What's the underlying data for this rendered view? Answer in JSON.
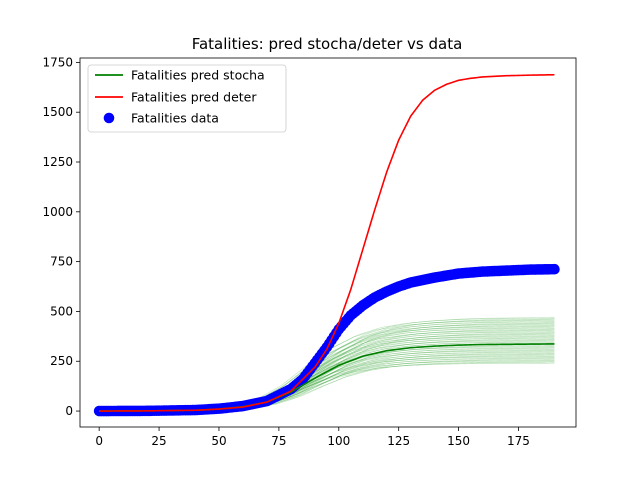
{
  "chart_data": {
    "type": "line",
    "title": "Fatalities: pred stocha/deter vs data",
    "xlabel": "",
    "ylabel": "",
    "xlim": [
      -8,
      199
    ],
    "ylim": [
      -80,
      1772
    ],
    "xticks": [
      0,
      25,
      50,
      75,
      100,
      125,
      150,
      175
    ],
    "yticks": [
      0,
      250,
      500,
      750,
      1000,
      1250,
      1500,
      1750
    ],
    "legend_position": "top-left",
    "grid": false,
    "colors": {
      "stocha": "#008000",
      "stocha_ensemble": "#2ca02c",
      "deter": "#ff0000",
      "data": "#0000ff"
    },
    "series": [
      {
        "name": "Fatalities pred stocha",
        "style": "line",
        "color": "#008000",
        "x": [
          0,
          20,
          40,
          50,
          60,
          70,
          80,
          90,
          100,
          110,
          120,
          130,
          140,
          150,
          160,
          170,
          180,
          190
        ],
        "y": [
          0,
          1,
          4,
          10,
          22,
          45,
          95,
          165,
          230,
          275,
          303,
          318,
          326,
          331,
          334,
          335,
          336,
          337
        ]
      },
      {
        "name": "Fatalities pred deter",
        "style": "line",
        "color": "#ff0000",
        "x": [
          0,
          20,
          40,
          50,
          60,
          70,
          80,
          90,
          95,
          100,
          105,
          110,
          115,
          120,
          125,
          130,
          135,
          140,
          145,
          150,
          155,
          160,
          170,
          180,
          190
        ],
        "y": [
          0,
          1,
          4,
          10,
          20,
          45,
          100,
          220,
          310,
          440,
          610,
          810,
          1010,
          1200,
          1360,
          1480,
          1560,
          1610,
          1640,
          1660,
          1670,
          1677,
          1683,
          1686,
          1688
        ]
      },
      {
        "name": "Fatalities data",
        "style": "scatter",
        "color": "#0000ff",
        "x": [
          0,
          20,
          40,
          50,
          60,
          70,
          80,
          85,
          90,
          95,
          100,
          105,
          110,
          115,
          120,
          125,
          130,
          140,
          150,
          160,
          170,
          180,
          190
        ],
        "y": [
          0,
          1,
          5,
          12,
          25,
          50,
          110,
          160,
          240,
          320,
          410,
          480,
          530,
          570,
          600,
          625,
          645,
          670,
          690,
          700,
          705,
          710,
          712
        ]
      }
    ],
    "ensemble": {
      "color": "#2ca02c",
      "count": 60,
      "final_min": 240,
      "final_max": 470
    }
  }
}
